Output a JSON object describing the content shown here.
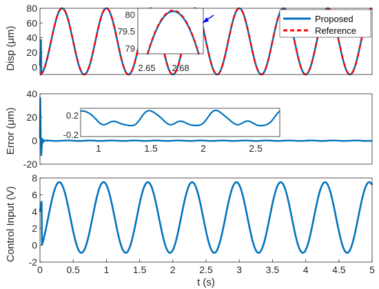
{
  "colors": {
    "proposed": "#0072BD",
    "reference": "#FF0000",
    "zoom_marker": "#0000FF",
    "axes": "#262626"
  },
  "chart_data": [
    {
      "id": "disp",
      "type": "line",
      "ylabel": "Disp (μm)",
      "xlim": [
        0,
        5
      ],
      "ylim": [
        -10,
        80
      ],
      "yticks": [
        0,
        20,
        40,
        60,
        80
      ],
      "grid": false,
      "legend_position": "top-right",
      "description_of_signal": {
        "frequency_hz": 1.5,
        "center": 35,
        "amplitude": 45
      },
      "series": [
        {
          "name": "Proposed",
          "style": "solid"
        },
        {
          "name": "Reference",
          "style": "dashed"
        }
      ],
      "inset": {
        "xlim": [
          2.64,
          2.69
        ],
        "ylim": [
          79,
          80.05
        ],
        "xticks": [
          "2.65",
          "2.68"
        ],
        "yticks": [
          "79",
          "79.5",
          "80"
        ]
      }
    },
    {
      "id": "error",
      "type": "line",
      "ylabel": "Error (μm)",
      "xlim": [
        0,
        5
      ],
      "ylim": [
        -20,
        40
      ],
      "yticks": [
        -20,
        0,
        20,
        40
      ],
      "grid": false,
      "description_of_signal": {
        "initial_spike_max": 37,
        "initial_spike_min": -13,
        "steady_state": 0
      },
      "inset": {
        "xlim": [
          0.75,
          2.75
        ],
        "ylim": [
          -0.25,
          0.25
        ],
        "xticks": [
          "1",
          "1.5",
          "2",
          "2.5"
        ],
        "yticks": [
          "0.2",
          "-0.2"
        ]
      }
    },
    {
      "id": "control",
      "type": "line",
      "ylabel": "Control Input (V)",
      "xlabel": "t (s)",
      "xlim": [
        0,
        5
      ],
      "ylim": [
        -2,
        8
      ],
      "yticks": [
        -2,
        0,
        2,
        4,
        6,
        8
      ],
      "xticks": [
        "0",
        "0.5",
        "1",
        "1.5",
        "2",
        "2.5",
        "3",
        "3.5",
        "4",
        "4.5",
        "5"
      ],
      "grid": false,
      "description_of_signal": {
        "frequency_hz": 1.5,
        "max": 7.5,
        "min": -0.9
      }
    }
  ]
}
